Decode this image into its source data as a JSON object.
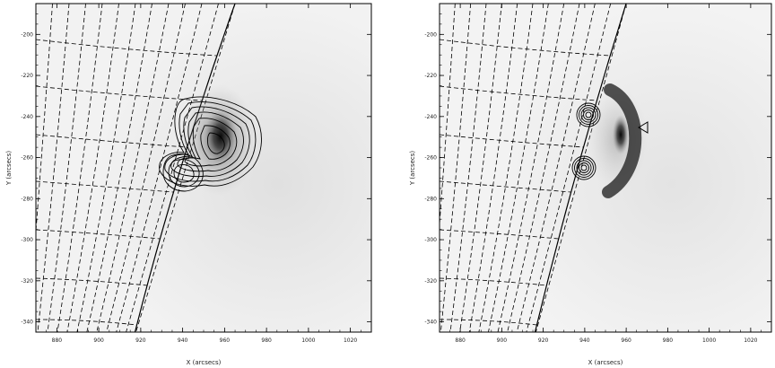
{
  "chart_data": [
    {
      "type": "heatmap",
      "panel": "left",
      "xlabel": "X (arcsecs)",
      "ylabel": "Y (arcsecs)",
      "x_ticks": [
        "880",
        "900",
        "920",
        "940",
        "960",
        "980",
        "1000",
        "1020"
      ],
      "y_ticks": [
        "-200",
        "-220",
        "-240",
        "-260",
        "-280",
        "-300",
        "-320",
        "-340"
      ],
      "xlim": [
        870,
        1030
      ],
      "ylim": [
        -345,
        -185
      ],
      "grid": "dashed heliographic lat/lon grid on solar disk",
      "colormap": "inverted grayscale",
      "features": {
        "emission_peak": {
          "x": 953,
          "y": -247
        },
        "contour_sources": [
          {
            "x": 943,
            "y": -243
          },
          {
            "x": 937,
            "y": -259
          }
        ]
      }
    },
    {
      "type": "heatmap",
      "panel": "right",
      "xlabel": "X (arcsecs)",
      "ylabel": "Y (arcsecs)",
      "x_ticks": [
        "880",
        "900",
        "920",
        "940",
        "960",
        "980",
        "1000",
        "1020"
      ],
      "y_ticks": [
        "-200",
        "-220",
        "-240",
        "-260",
        "-280",
        "-300",
        "-320",
        "-340"
      ],
      "xlim": [
        870,
        1030
      ],
      "ylim": [
        -345,
        -185
      ],
      "grid": "dashed heliographic lat/lon grid on solar disk",
      "colormap": "inverted grayscale",
      "features": {
        "emission_peak": {
          "x": 954,
          "y": -247
        },
        "contour_sources": [
          {
            "x": 939,
            "y": -242
          },
          {
            "x": 938,
            "y": -258
          }
        ],
        "marker": {
          "shape": "diamond",
          "x": 961,
          "y": -244
        }
      }
    }
  ]
}
